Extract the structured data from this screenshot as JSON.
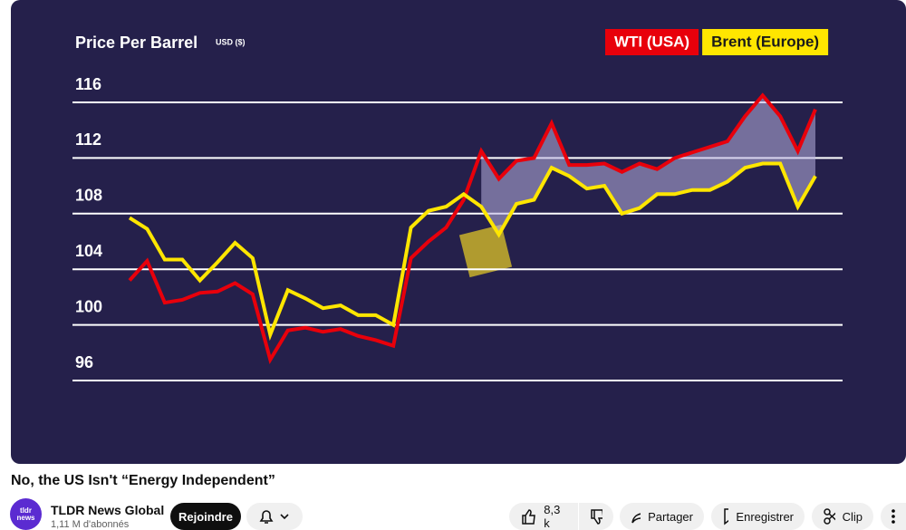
{
  "chart_data": {
    "type": "line",
    "title": "Price Per Barrel",
    "subtitle": "USD ($)",
    "categories": [
      null,
      null,
      null,
      null,
      null,
      null,
      null,
      null,
      null,
      null,
      null,
      null,
      null,
      null,
      null,
      null,
      null,
      null,
      null,
      null,
      null,
      null,
      null,
      null,
      null,
      null,
      null,
      null,
      null,
      null,
      null,
      null,
      null,
      null,
      null,
      null,
      null,
      null,
      null,
      null
    ],
    "series": [
      {
        "name": "WTI (USA)",
        "color": "#e8000b",
        "values": [
          103.2,
          104.6,
          101.6,
          101.8,
          102.3,
          102.4,
          103.0,
          102.2,
          97.5,
          99.6,
          99.8,
          99.5,
          99.7,
          99.2,
          98.9,
          98.5,
          104.8,
          106.0,
          107.0,
          109.0,
          112.5,
          110.5,
          111.8,
          112.0,
          114.5,
          111.5,
          111.5,
          111.6,
          111.0,
          111.6,
          111.2,
          112.0,
          112.4,
          112.8,
          113.2,
          115.0,
          116.5,
          115.0,
          112.5,
          115.5
        ]
      },
      {
        "name": "Brent (Europe)",
        "color": "#ffe600",
        "values": [
          107.7,
          106.9,
          104.7,
          104.7,
          103.2,
          104.5,
          105.9,
          104.8,
          99.3,
          102.5,
          101.9,
          101.2,
          101.4,
          100.7,
          100.7,
          100.0,
          107.0,
          108.2,
          108.5,
          109.4,
          108.5,
          106.5,
          108.7,
          109.0,
          111.3,
          110.7,
          109.8,
          110.0,
          108.0,
          108.4,
          109.4,
          109.4,
          109.7,
          109.7,
          110.3,
          111.3,
          111.6,
          111.6,
          108.5,
          110.7
        ]
      }
    ],
    "ylim": [
      96,
      116
    ],
    "yticks": [
      96,
      100,
      104,
      108,
      112,
      116
    ],
    "grid": true
  },
  "video": {
    "title": "No, the US Isn't “Energy Independent”",
    "channel": "TLDR News Global",
    "subscribers": "1,11 M d'abonnés",
    "avatar": "tldr news",
    "join": "Rejoindre",
    "likes": "8,3 k",
    "share": "Partager",
    "save": "Enregistrer",
    "clip": "Clip"
  }
}
